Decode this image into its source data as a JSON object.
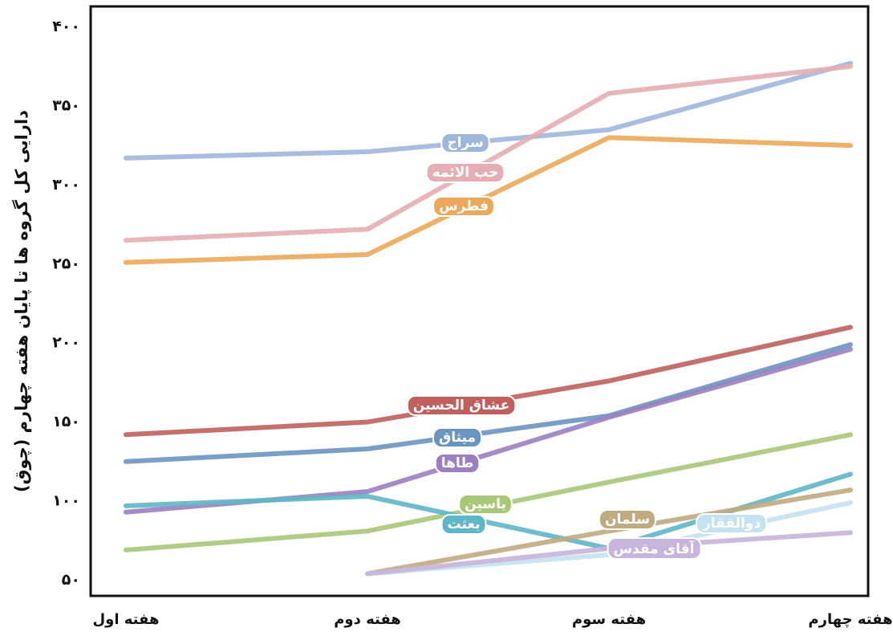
{
  "chart_data": {
    "type": "line",
    "y_label": "دارایی کل گروه ها تا پایان هفته چهارم (چوق)",
    "categories": [
      "هفته اول",
      "هفته دوم",
      "هفته سوم",
      "هفته چهارم"
    ],
    "ylim": [
      40,
      413
    ],
    "yticks": [
      {
        "value": 50,
        "label": "۵۰"
      },
      {
        "value": 100,
        "label": "۱۰۰"
      },
      {
        "value": 150,
        "label": "۱۵۰"
      },
      {
        "value": 200,
        "label": "۲۰۰"
      },
      {
        "value": 250,
        "label": "۲۵۰"
      },
      {
        "value": 300,
        "label": "۳۰۰"
      },
      {
        "value": 350,
        "label": "۳۵۰"
      },
      {
        "value": 400,
        "label": "۴۰۰"
      }
    ],
    "grid": false,
    "series": [
      {
        "name": "سراج",
        "color": "#9fb6dc",
        "values": [
          317,
          321,
          335,
          377
        ]
      },
      {
        "name": "حب الائمه",
        "color": "#e4aeb4",
        "values": [
          265,
          272,
          358,
          375
        ]
      },
      {
        "name": "فطرس",
        "color": "#eca85a",
        "values": [
          251,
          256,
          330,
          325
        ]
      },
      {
        "name": "عشاق الحسین",
        "color": "#c0605e",
        "values": [
          142,
          150,
          176,
          210
        ]
      },
      {
        "name": "میثاق",
        "color": "#6a95c0",
        "values": [
          125,
          133,
          154,
          199
        ]
      },
      {
        "name": "طاها",
        "color": "#9b7fc0",
        "values": [
          93,
          106,
          153,
          196
        ]
      },
      {
        "name": "یاسین",
        "color": "#a8c878",
        "values": [
          69,
          81,
          112,
          142
        ]
      },
      {
        "name": "بعثت",
        "color": "#5fb6c6",
        "values": [
          97,
          103,
          70,
          117
        ]
      },
      {
        "name": "سلمان",
        "color": "#c0aa80",
        "values": [
          null,
          54,
          81,
          107
        ]
      },
      {
        "name": "ذوالفقار",
        "color": "#c4e2f0",
        "values": [
          null,
          54,
          66,
          99
        ]
      },
      {
        "name": "آقای مقدس",
        "color": "#c8b4dc",
        "values": [
          null,
          54,
          70,
          80
        ]
      }
    ]
  }
}
